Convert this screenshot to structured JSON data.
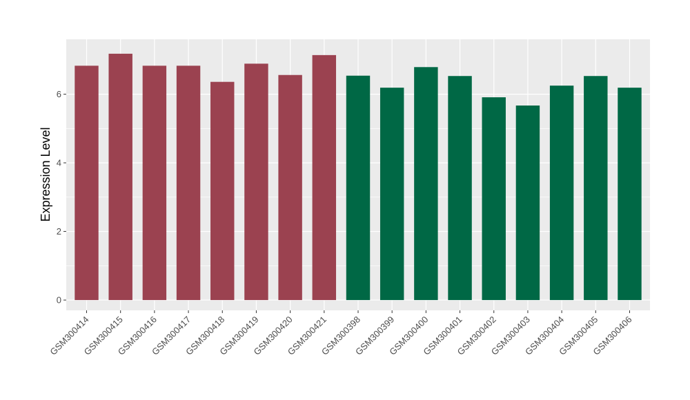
{
  "chart_data": {
    "type": "bar",
    "title": "",
    "xlabel": "",
    "ylabel": "Expression Level",
    "ylim": [
      -0.3,
      7.6
    ],
    "yticks": [
      0,
      2,
      4,
      6
    ],
    "grid": true,
    "categories": [
      "GSM300414",
      "GSM300415",
      "GSM300416",
      "GSM300417",
      "GSM300418",
      "GSM300419",
      "GSM300420",
      "GSM300421",
      "GSM300398",
      "GSM300399",
      "GSM300400",
      "GSM300401",
      "GSM300402",
      "GSM300403",
      "GSM300404",
      "GSM300405",
      "GSM300406"
    ],
    "values": [
      6.83,
      7.18,
      6.83,
      6.83,
      6.36,
      6.89,
      6.56,
      7.14,
      6.54,
      6.19,
      6.79,
      6.53,
      5.91,
      5.67,
      6.25,
      6.53,
      6.19
    ],
    "bar_colors": [
      "#9b4250",
      "#9b4250",
      "#9b4250",
      "#9b4250",
      "#9b4250",
      "#9b4250",
      "#9b4250",
      "#9b4250",
      "#006845",
      "#006845",
      "#006845",
      "#006845",
      "#006845",
      "#006845",
      "#006845",
      "#006845",
      "#006845"
    ],
    "panel_background": "#ebebeb",
    "gridline_color": "#ffffff"
  }
}
